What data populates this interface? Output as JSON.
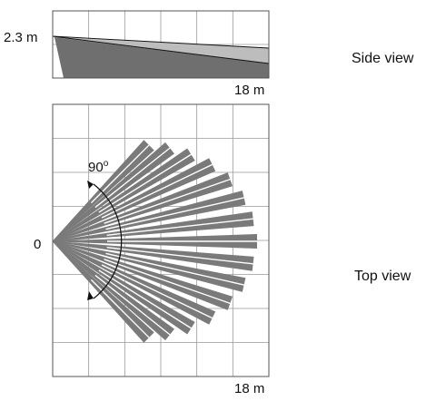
{
  "side_view": {
    "height_label": "2.3 m",
    "range_label": "18 m",
    "title": "Side view"
  },
  "top_view": {
    "origin_label": "0",
    "angle_label": "90",
    "degree_symbol": "o",
    "range_label": "18 m",
    "title": "Top view",
    "beam_count": 15,
    "angle_degrees": 90
  },
  "colors": {
    "beam": "#7a7a7a",
    "side_dark": "#6f6f6f",
    "side_light": "#bdbdbd",
    "grid": "#9a9a9a",
    "frame": "#555555"
  }
}
